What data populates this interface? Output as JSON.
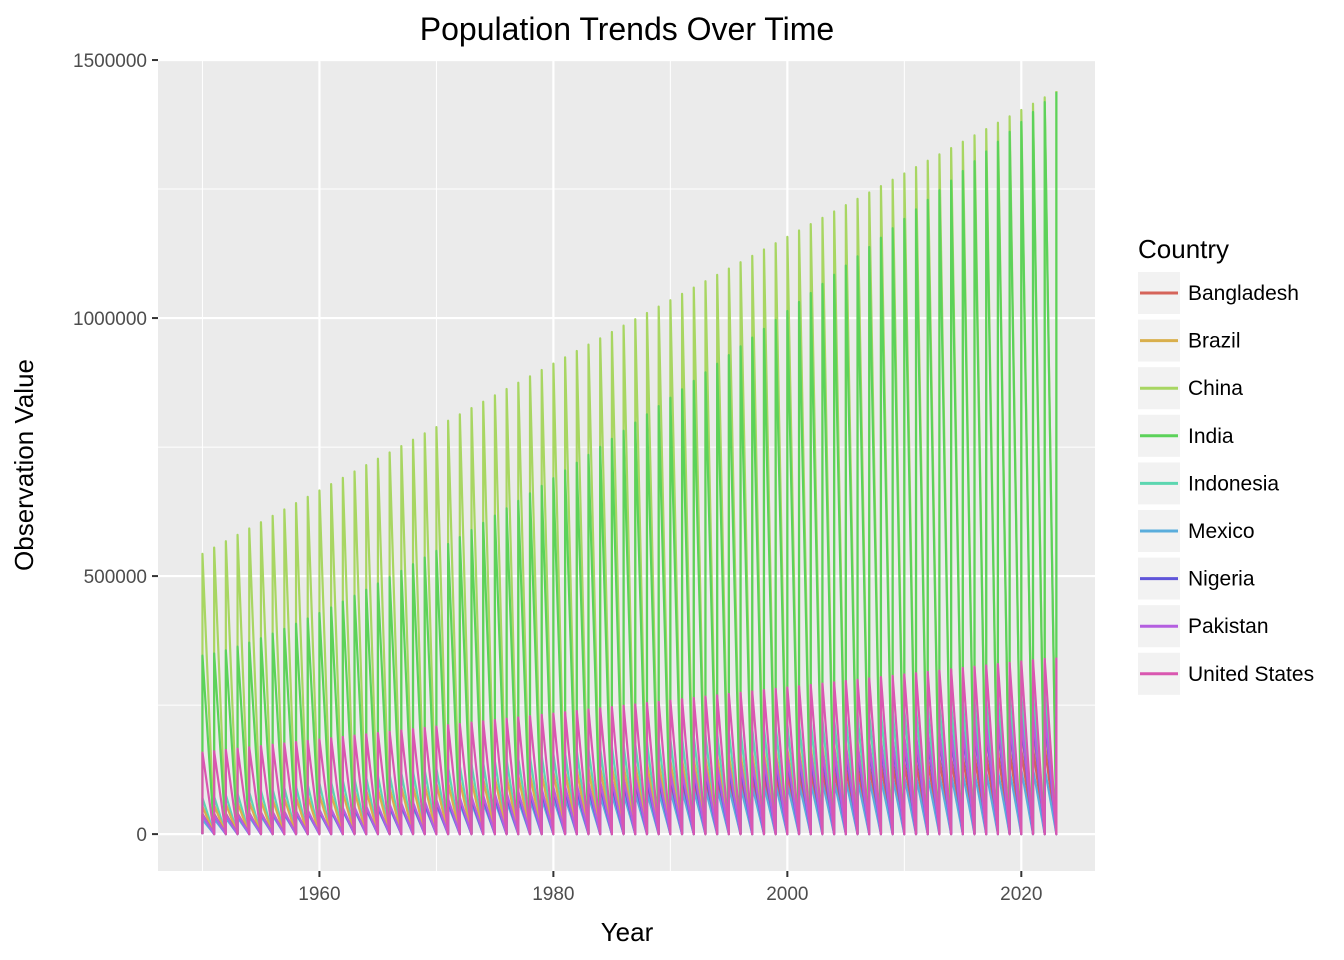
{
  "chart_data": {
    "type": "line",
    "title": "Population Trends Over Time",
    "xlabel": "Year",
    "ylabel": "Observation Value",
    "xlim": [
      1946.2,
      2026.3
    ],
    "ylim": [
      -71500,
      1502000
    ],
    "x_ticks": [
      1960,
      1980,
      2000,
      2020
    ],
    "y_ticks": [
      0,
      500000,
      1000000,
      1500000
    ],
    "x_tick_labels": [
      "1960",
      "1980",
      "2000",
      "2020"
    ],
    "y_tick_labels": [
      "0",
      "500000",
      "1000000",
      "1500000"
    ],
    "grid": true,
    "legend": {
      "title": "Country",
      "position": "right"
    },
    "years": [
      1950,
      2023
    ],
    "series": [
      {
        "name": "Bangladesh",
        "color": "#D5645A",
        "start": 39000,
        "end": 172000,
        "curve": 1.4
      },
      {
        "name": "Brazil",
        "color": "#D9AF4C",
        "start": 54000,
        "end": 216000,
        "curve": 1.0
      },
      {
        "name": "China",
        "color": "#A8D662",
        "start": 543000,
        "end": 1440000,
        "curve": 1.0
      },
      {
        "name": "India",
        "color": "#5CD25A",
        "start": 346000,
        "end": 1438000,
        "curve": 1.3
      },
      {
        "name": "Indonesia",
        "color": "#5CD6B0",
        "start": 70000,
        "end": 278000,
        "curve": 1.0
      },
      {
        "name": "Mexico",
        "color": "#5AADDC",
        "start": 28000,
        "end": 129000,
        "curve": 1.0
      },
      {
        "name": "Nigeria",
        "color": "#5F55D9",
        "start": 37000,
        "end": 228000,
        "curve": 1.6
      },
      {
        "name": "Pakistan",
        "color": "#B45FE0",
        "start": 37000,
        "end": 241000,
        "curve": 1.5
      },
      {
        "name": "United States",
        "color": "#D957B0",
        "start": 158000,
        "end": 342000,
        "curve": 1.0
      }
    ]
  }
}
